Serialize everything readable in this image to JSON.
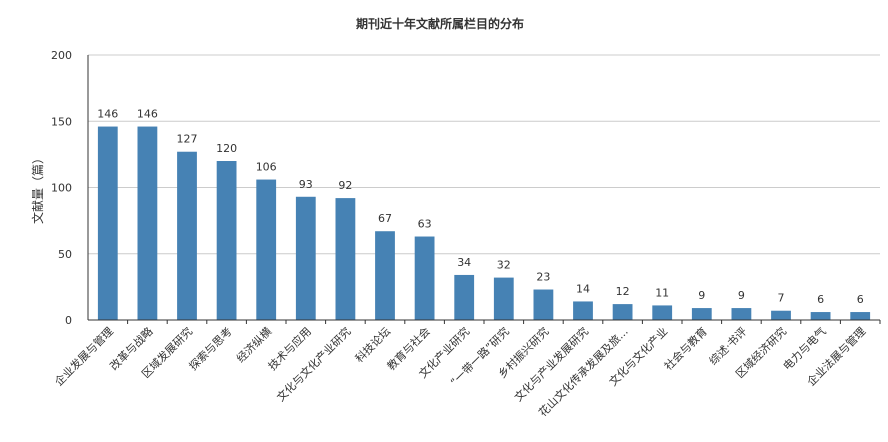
{
  "chart_data": {
    "type": "bar",
    "title": "期刊近十年文献所属栏目的分布",
    "xlabel": "",
    "ylabel": "文献量（篇）",
    "ylim": [
      0,
      200
    ],
    "yticks": [
      0,
      50,
      100,
      150,
      200
    ],
    "grid": true,
    "legend": "none",
    "bar_color": "#4682b4",
    "categories": [
      "企业发展与管理",
      "改革与战略",
      "区域发展研究",
      "探索与思考",
      "经济纵横",
      "技术与应用",
      "文化与文化产业研究",
      "科技论坛",
      "教育与社会",
      "文化产业研究",
      "“一带一路”研究",
      "乡村振兴研究",
      "文化与产业发展研究",
      "花山文化传承发展及旅...",
      "文化与文化产业",
      "社会与教育",
      "综述·书评",
      "区域经济研究",
      "电力与电气",
      "企业法展与管理"
    ],
    "values": [
      146,
      146,
      127,
      120,
      106,
      93,
      92,
      67,
      63,
      34,
      32,
      23,
      14,
      12,
      11,
      9,
      9,
      7,
      6,
      6
    ]
  }
}
